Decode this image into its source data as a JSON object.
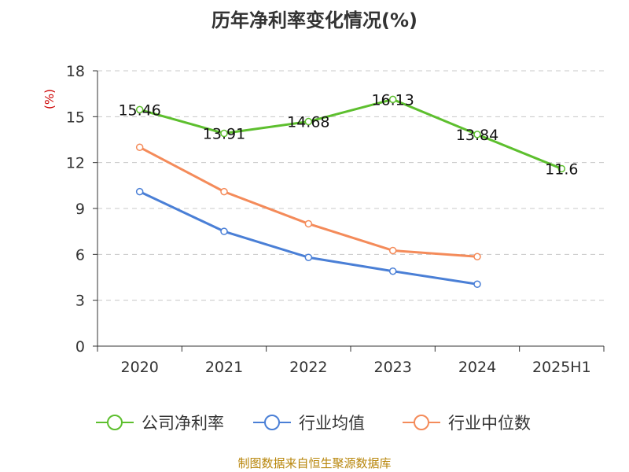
{
  "chart_data": {
    "type": "line",
    "title": "历年净利率变化情况(%)",
    "ylabel": "(%)",
    "categories": [
      "2020",
      "2021",
      "2022",
      "2023",
      "2024",
      "2025H1"
    ],
    "yticks": [
      "0",
      "3",
      "6",
      "9",
      "12",
      "15",
      "18"
    ],
    "ylim": [
      0,
      18
    ],
    "grid": true,
    "legend_position": "bottom",
    "series": [
      {
        "name": "公司净利率",
        "color": "#5dbf2e",
        "values": [
          15.46,
          13.91,
          14.68,
          16.13,
          13.84,
          11.6
        ],
        "labels": [
          "15.46",
          "13.91",
          "14.68",
          "16.13",
          "13.84",
          "11.6"
        ]
      },
      {
        "name": "行业均值",
        "color": "#4a7fd6",
        "values": [
          10.1,
          7.5,
          5.8,
          4.9,
          4.05,
          null
        ]
      },
      {
        "name": "行业中位数",
        "color": "#f48b5a",
        "values": [
          13.0,
          10.1,
          8.0,
          6.25,
          5.85,
          null
        ]
      }
    ]
  },
  "source": "制图数据来自恒生聚源数据库"
}
